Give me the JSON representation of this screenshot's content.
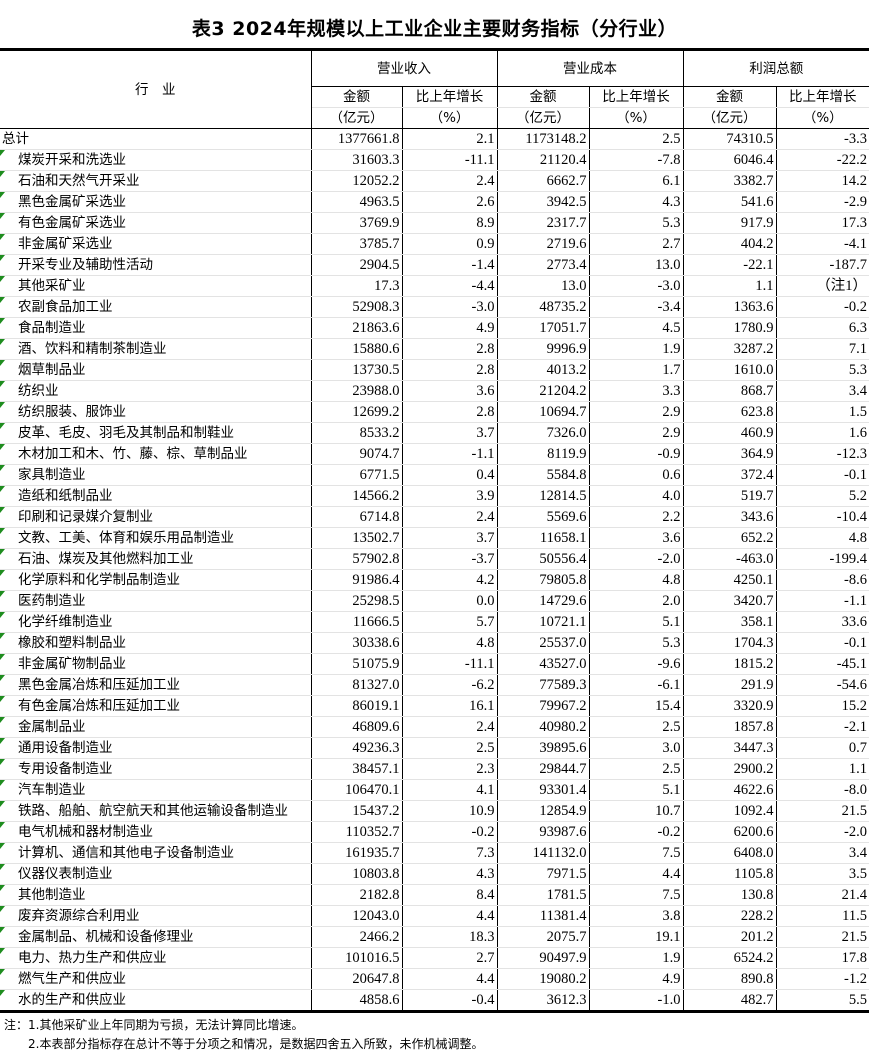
{
  "title": "表3  2024年规模以上工业企业主要财务指标（分行业）",
  "header": {
    "industry": "行　业",
    "groups": [
      "营业收入",
      "营业成本",
      "利润总额"
    ],
    "amount": "金额",
    "amount_unit": "（亿元）",
    "growth": "比上年增长",
    "growth_unit": "（%）"
  },
  "rows": [
    [
      "总计",
      "1377661.8",
      "2.1",
      "1173148.2",
      "2.5",
      "74310.5",
      "-3.3"
    ],
    [
      "煤炭开采和洗选业",
      "31603.3",
      "-11.1",
      "21120.4",
      "-7.8",
      "6046.4",
      "-22.2"
    ],
    [
      "石油和天然气开采业",
      "12052.2",
      "2.4",
      "6662.7",
      "6.1",
      "3382.7",
      "14.2"
    ],
    [
      "黑色金属矿采选业",
      "4963.5",
      "2.6",
      "3942.5",
      "4.3",
      "541.6",
      "-2.9"
    ],
    [
      "有色金属矿采选业",
      "3769.9",
      "8.9",
      "2317.7",
      "5.3",
      "917.9",
      "17.3"
    ],
    [
      "非金属矿采选业",
      "3785.7",
      "0.9",
      "2719.6",
      "2.7",
      "404.2",
      "-4.1"
    ],
    [
      "开采专业及辅助性活动",
      "2904.5",
      "-1.4",
      "2773.4",
      "13.0",
      "-22.1",
      "-187.7"
    ],
    [
      "其他采矿业",
      "17.3",
      "-4.4",
      "13.0",
      "-3.0",
      "1.1",
      "（注1）"
    ],
    [
      "农副食品加工业",
      "52908.3",
      "-3.0",
      "48735.2",
      "-3.4",
      "1363.6",
      "-0.2"
    ],
    [
      "食品制造业",
      "21863.6",
      "4.9",
      "17051.7",
      "4.5",
      "1780.9",
      "6.3"
    ],
    [
      "酒、饮料和精制茶制造业",
      "15880.6",
      "2.8",
      "9996.9",
      "1.9",
      "3287.2",
      "7.1"
    ],
    [
      "烟草制品业",
      "13730.5",
      "2.8",
      "4013.2",
      "1.7",
      "1610.0",
      "5.3"
    ],
    [
      "纺织业",
      "23988.0",
      "3.6",
      "21204.2",
      "3.3",
      "868.7",
      "3.4"
    ],
    [
      "纺织服装、服饰业",
      "12699.2",
      "2.8",
      "10694.7",
      "2.9",
      "623.8",
      "1.5"
    ],
    [
      "皮革、毛皮、羽毛及其制品和制鞋业",
      "8533.2",
      "3.7",
      "7326.0",
      "2.9",
      "460.9",
      "1.6"
    ],
    [
      "木材加工和木、竹、藤、棕、草制品业",
      "9074.7",
      "-1.1",
      "8119.9",
      "-0.9",
      "364.9",
      "-12.3"
    ],
    [
      "家具制造业",
      "6771.5",
      "0.4",
      "5584.8",
      "0.6",
      "372.4",
      "-0.1"
    ],
    [
      "造纸和纸制品业",
      "14566.2",
      "3.9",
      "12814.5",
      "4.0",
      "519.7",
      "5.2"
    ],
    [
      "印刷和记录媒介复制业",
      "6714.8",
      "2.4",
      "5569.6",
      "2.2",
      "343.6",
      "-10.4"
    ],
    [
      "文教、工美、体育和娱乐用品制造业",
      "13502.7",
      "3.7",
      "11658.1",
      "3.6",
      "652.2",
      "4.8"
    ],
    [
      "石油、煤炭及其他燃料加工业",
      "57902.8",
      "-3.7",
      "50556.4",
      "-2.0",
      "-463.0",
      "-199.4"
    ],
    [
      "化学原料和化学制品制造业",
      "91986.4",
      "4.2",
      "79805.8",
      "4.8",
      "4250.1",
      "-8.6"
    ],
    [
      "医药制造业",
      "25298.5",
      "0.0",
      "14729.6",
      "2.0",
      "3420.7",
      "-1.1"
    ],
    [
      "化学纤维制造业",
      "11666.5",
      "5.7",
      "10721.1",
      "5.1",
      "358.1",
      "33.6"
    ],
    [
      "橡胶和塑料制品业",
      "30338.6",
      "4.8",
      "25537.0",
      "5.3",
      "1704.3",
      "-0.1"
    ],
    [
      "非金属矿物制品业",
      "51075.9",
      "-11.1",
      "43527.0",
      "-9.6",
      "1815.2",
      "-45.1"
    ],
    [
      "黑色金属冶炼和压延加工业",
      "81327.0",
      "-6.2",
      "77589.3",
      "-6.1",
      "291.9",
      "-54.6"
    ],
    [
      "有色金属冶炼和压延加工业",
      "86019.1",
      "16.1",
      "79967.2",
      "15.4",
      "3320.9",
      "15.2"
    ],
    [
      "金属制品业",
      "46809.6",
      "2.4",
      "40980.2",
      "2.5",
      "1857.8",
      "-2.1"
    ],
    [
      "通用设备制造业",
      "49236.3",
      "2.5",
      "39895.6",
      "3.0",
      "3447.3",
      "0.7"
    ],
    [
      "专用设备制造业",
      "38457.1",
      "2.3",
      "29844.7",
      "2.5",
      "2900.2",
      "1.1"
    ],
    [
      "汽车制造业",
      "106470.1",
      "4.1",
      "93301.4",
      "5.1",
      "4622.6",
      "-8.0"
    ],
    [
      "铁路、船舶、航空航天和其他运输设备制造业",
      "15437.2",
      "10.9",
      "12854.9",
      "10.7",
      "1092.4",
      "21.5"
    ],
    [
      "电气机械和器材制造业",
      "110352.7",
      "-0.2",
      "93987.6",
      "-0.2",
      "6200.6",
      "-2.0"
    ],
    [
      "计算机、通信和其他电子设备制造业",
      "161935.7",
      "7.3",
      "141132.0",
      "7.5",
      "6408.0",
      "3.4"
    ],
    [
      "仪器仪表制造业",
      "10803.8",
      "4.3",
      "7971.5",
      "4.4",
      "1105.8",
      "3.5"
    ],
    [
      "其他制造业",
      "2182.8",
      "8.4",
      "1781.5",
      "7.5",
      "130.8",
      "21.4"
    ],
    [
      "废弃资源综合利用业",
      "12043.0",
      "4.4",
      "11381.4",
      "3.8",
      "228.2",
      "11.5"
    ],
    [
      "金属制品、机械和设备修理业",
      "2466.2",
      "18.3",
      "2075.7",
      "19.1",
      "201.2",
      "21.5"
    ],
    [
      "电力、热力生产和供应业",
      "101016.5",
      "2.7",
      "90497.9",
      "1.9",
      "6524.2",
      "17.8"
    ],
    [
      "燃气生产和供应业",
      "20647.8",
      "4.4",
      "19080.2",
      "4.9",
      "890.8",
      "-1.2"
    ],
    [
      "水的生产和供应业",
      "4858.6",
      "-0.4",
      "3612.3",
      "-1.0",
      "482.7",
      "5.5"
    ]
  ],
  "notes": [
    "注：1.其他采矿业上年同期为亏损，无法计算同比增速。",
    "　　2.本表部分指标存在总计不等于分项之和情况，是数据四舍五入所致，未作机械调整。"
  ],
  "colors": {
    "error_indicator": "#1e8c1e"
  }
}
